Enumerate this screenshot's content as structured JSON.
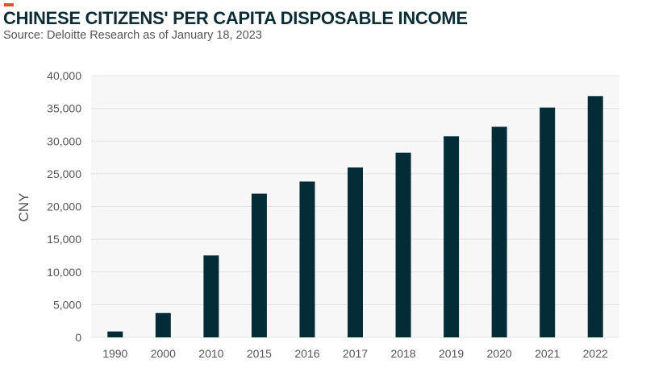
{
  "colors": {
    "accent": "#e8501f",
    "bar": "#042c37",
    "title": "#0d2d36",
    "grid": "#e3e3e3",
    "plot_background": "#f7f7f7"
  },
  "header": {
    "title": "CHINESE CITIZENS' PER CAPITA DISPOSABLE INCOME",
    "subtitle": "Source: Deloitte Research as of January 18, 2023"
  },
  "chart_data": {
    "type": "bar",
    "title": "CHINESE CITIZENS' PER CAPITA DISPOSABLE INCOME",
    "subtitle": "Source: Deloitte Research as of January 18, 2023",
    "xlabel": "",
    "ylabel": "CNY",
    "categories": [
      "1990",
      "2000",
      "2010",
      "2015",
      "2016",
      "2017",
      "2018",
      "2019",
      "2020",
      "2021",
      "2022"
    ],
    "values": [
      904,
      3721,
      12520,
      21966,
      23821,
      25974,
      28228,
      30733,
      32189,
      35128,
      36883
    ],
    "ylim": [
      0,
      40000
    ],
    "yticks": [
      0,
      5000,
      10000,
      15000,
      20000,
      25000,
      30000,
      35000,
      40000
    ],
    "ytick_labels": [
      "0",
      "5,000",
      "10,000",
      "15,000",
      "20,000",
      "25,000",
      "30,000",
      "35,000",
      "40,000"
    ],
    "grid": true,
    "legend": "none"
  }
}
